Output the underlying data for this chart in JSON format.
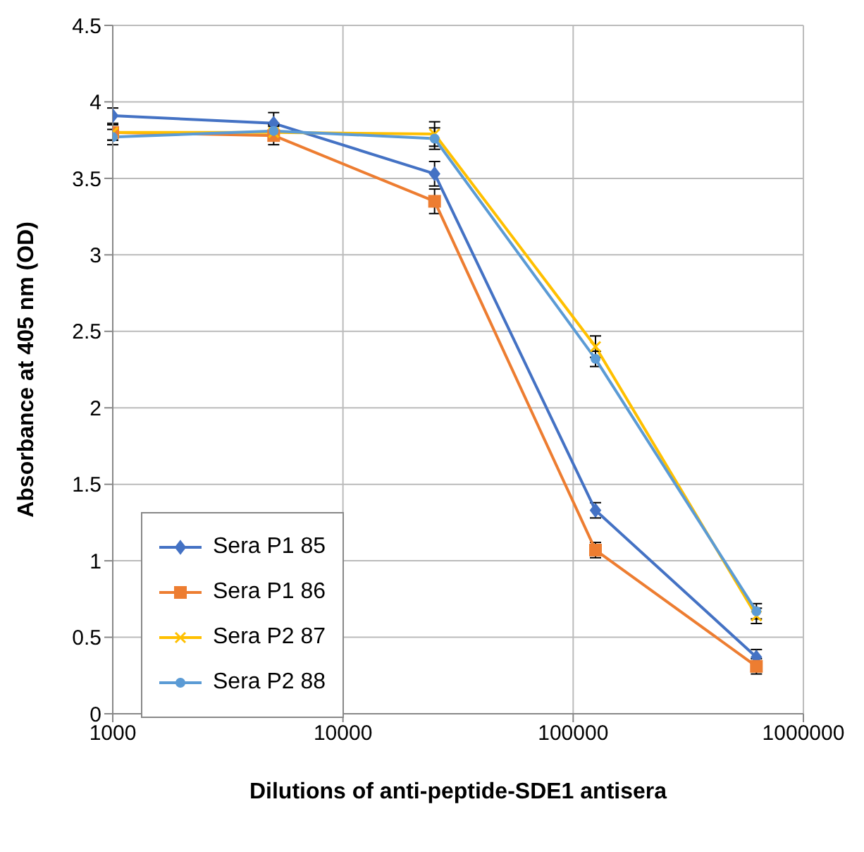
{
  "chart_data": {
    "type": "line",
    "xlabel": "Dilutions of anti-peptide-SDE1 antisera",
    "ylabel": "Absorbance at 405 nm (OD)",
    "x": [
      1000,
      5000,
      25000,
      125000,
      625000
    ],
    "log": "x",
    "xlim": [
      1000,
      1000000
    ],
    "xticks": [
      1000,
      10000,
      100000,
      1000000
    ],
    "ylim": [
      0,
      4.5
    ],
    "yticks": [
      0,
      0.5,
      1,
      1.5,
      2,
      2.5,
      3,
      3.5,
      4,
      4.5
    ],
    "grid": true,
    "legend": "bottom left",
    "series": [
      {
        "name": "Sera P1 85",
        "color": "#4472c4",
        "marker": "diamond",
        "values": [
          3.91,
          3.86,
          3.53,
          1.33,
          0.37
        ],
        "errors": [
          0.05,
          0.07,
          0.08,
          0.05,
          0.05
        ]
      },
      {
        "name": "Sera P1 86",
        "color": "#ed7d31",
        "marker": "square",
        "values": [
          3.8,
          3.78,
          3.35,
          1.07,
          0.31
        ],
        "errors": [
          0.05,
          0.06,
          0.08,
          0.05,
          0.05
        ]
      },
      {
        "name": "Sera P2 87",
        "color": "#ffc000",
        "marker": "cross",
        "values": [
          3.8,
          3.8,
          3.79,
          2.4,
          0.64
        ],
        "errors": [
          0.05,
          0.05,
          0.08,
          0.07,
          0.05
        ]
      },
      {
        "name": "Sera P2 88",
        "color": "#5b9bd5",
        "marker": "circle",
        "values": [
          3.77,
          3.81,
          3.76,
          2.32,
          0.67
        ],
        "errors": [
          0.05,
          0.05,
          0.07,
          0.05,
          0.05
        ]
      }
    ]
  }
}
